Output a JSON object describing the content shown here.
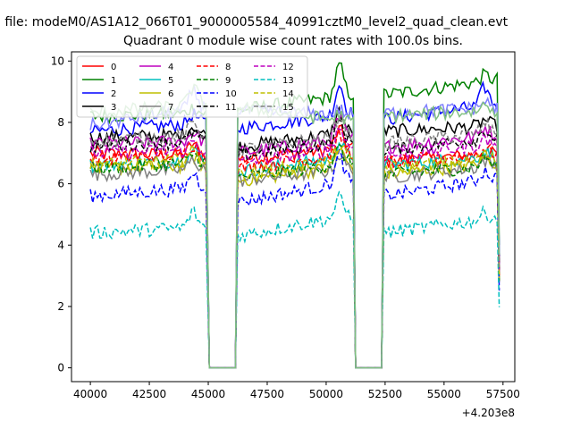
{
  "figure": {
    "suptitle": "n file: modeM0/AS1A12_066T01_9000005584_40991cztM0_level2_quad_clean.evt",
    "title": "Quadrant 0 module wise count rates with 100.0s bins.",
    "x_offset_label": "+4.203e8"
  },
  "chart_data": {
    "type": "line",
    "title": "Quadrant 0 module wise count rates with 100.0s bins.",
    "xlabel": "",
    "ylabel": "",
    "x_offset": 420300000,
    "xlim": [
      39200,
      58000
    ],
    "ylim": [
      -0.45,
      10.3
    ],
    "x_ticks": [
      40000,
      42500,
      45000,
      47500,
      50000,
      52500,
      55000,
      57500
    ],
    "x_tick_labels": [
      "40000",
      "42500",
      "45000",
      "47500",
      "50000",
      "52500",
      "55000",
      "57500"
    ],
    "y_ticks": [
      0,
      2,
      4,
      6,
      8,
      10
    ],
    "y_tick_labels": [
      "0",
      "2",
      "4",
      "6",
      "8",
      "10"
    ],
    "grid": false,
    "legend_position": "upper-left",
    "legend_columns": 4,
    "bin_seconds": 100,
    "x_start": 40000,
    "x_end": 57300,
    "gaps": [
      [
        45050,
        46150
      ],
      [
        51250,
        52350
      ]
    ],
    "series": [
      {
        "name": "0",
        "color": "#ff0000",
        "style": "solid",
        "segments": [
          {
            "from": 40000,
            "to": 44950,
            "start": 7.0,
            "end": 6.9,
            "peak": 7.4
          },
          {
            "from": 46250,
            "to": 51150,
            "start": 6.8,
            "end": 7.2,
            "peak": 7.8
          },
          {
            "from": 52450,
            "to": 57300,
            "start": 6.7,
            "end": 7.0,
            "peak": 7.0
          }
        ]
      },
      {
        "name": "1",
        "color": "#008000",
        "style": "solid",
        "segments": [
          {
            "from": 40000,
            "to": 44950,
            "start": 8.2,
            "end": 8.3,
            "peak": 8.5
          },
          {
            "from": 46250,
            "to": 51150,
            "start": 8.4,
            "end": 8.9,
            "peak": 9.9
          },
          {
            "from": 52450,
            "to": 57300,
            "start": 8.9,
            "end": 9.4,
            "peak": 9.6
          }
        ]
      },
      {
        "name": "2",
        "color": "#0000ff",
        "style": "solid",
        "segments": [
          {
            "from": 40000,
            "to": 44950,
            "start": 7.7,
            "end": 8.0,
            "peak": 8.3
          },
          {
            "from": 46250,
            "to": 51150,
            "start": 7.8,
            "end": 8.3,
            "peak": 9.3
          },
          {
            "from": 52450,
            "to": 57300,
            "start": 8.1,
            "end": 8.6,
            "peak": 9.2
          }
        ]
      },
      {
        "name": "3",
        "color": "#000000",
        "style": "solid",
        "segments": [
          {
            "from": 40000,
            "to": 44950,
            "start": 7.5,
            "end": 7.6,
            "peak": 7.9
          },
          {
            "from": 46250,
            "to": 51150,
            "start": 7.2,
            "end": 7.7,
            "peak": 8.4
          },
          {
            "from": 52450,
            "to": 57300,
            "start": 7.7,
            "end": 7.9,
            "peak": 8.1
          }
        ]
      },
      {
        "name": "4",
        "color": "#bf00bf",
        "style": "solid",
        "segments": [
          {
            "from": 40000,
            "to": 44950,
            "start": 7.3,
            "end": 7.4,
            "peak": 7.7
          },
          {
            "from": 46250,
            "to": 51150,
            "start": 7.0,
            "end": 7.5,
            "peak": 8.2
          },
          {
            "from": 52450,
            "to": 57300,
            "start": 7.2,
            "end": 7.6,
            "peak": 7.9
          }
        ]
      },
      {
        "name": "5",
        "color": "#00bfbf",
        "style": "solid",
        "segments": [
          {
            "from": 40000,
            "to": 44950,
            "start": 6.6,
            "end": 6.8,
            "peak": 7.1
          },
          {
            "from": 46250,
            "to": 51150,
            "start": 6.4,
            "end": 6.9,
            "peak": 7.4
          },
          {
            "from": 52450,
            "to": 57300,
            "start": 6.6,
            "end": 6.9,
            "peak": 7.1
          }
        ]
      },
      {
        "name": "6",
        "color": "#bfbf00",
        "style": "solid",
        "segments": [
          {
            "from": 40000,
            "to": 44950,
            "start": 6.5,
            "end": 6.6,
            "peak": 6.9
          },
          {
            "from": 46250,
            "to": 51150,
            "start": 6.1,
            "end": 6.6,
            "peak": 7.2
          },
          {
            "from": 52450,
            "to": 57300,
            "start": 6.3,
            "end": 6.7,
            "peak": 6.9
          }
        ]
      },
      {
        "name": "7",
        "color": "#808080",
        "style": "solid",
        "segments": [
          {
            "from": 40000,
            "to": 44950,
            "start": 6.3,
            "end": 6.5,
            "peak": 6.8
          },
          {
            "from": 46250,
            "to": 51150,
            "start": 6.1,
            "end": 6.5,
            "peak": 7.0
          },
          {
            "from": 52450,
            "to": 57300,
            "start": 6.2,
            "end": 6.6,
            "peak": 6.8
          }
        ]
      },
      {
        "name": "8",
        "color": "#ff0000",
        "style": "dashed",
        "segments": [
          {
            "from": 40000,
            "to": 44950,
            "start": 6.8,
            "end": 7.0,
            "peak": 7.3
          },
          {
            "from": 46250,
            "to": 51150,
            "start": 6.5,
            "end": 7.0,
            "peak": 7.6
          },
          {
            "from": 52450,
            "to": 57300,
            "start": 6.7,
            "end": 7.0,
            "peak": 7.2
          }
        ]
      },
      {
        "name": "9",
        "color": "#008000",
        "style": "dashed",
        "segments": [
          {
            "from": 40000,
            "to": 44950,
            "start": 6.5,
            "end": 6.7,
            "peak": 7.0
          },
          {
            "from": 46250,
            "to": 51150,
            "start": 6.2,
            "end": 6.7,
            "peak": 7.2
          },
          {
            "from": 52450,
            "to": 57300,
            "start": 6.3,
            "end": 6.6,
            "peak": 6.9
          }
        ]
      },
      {
        "name": "10",
        "color": "#0000ff",
        "style": "dashed",
        "segments": [
          {
            "from": 40000,
            "to": 44950,
            "start": 5.6,
            "end": 5.9,
            "peak": 6.4
          },
          {
            "from": 46250,
            "to": 51150,
            "start": 5.4,
            "end": 6.1,
            "peak": 7.0
          },
          {
            "from": 52450,
            "to": 57300,
            "start": 5.6,
            "end": 6.2,
            "peak": 6.5
          }
        ]
      },
      {
        "name": "11",
        "color": "#000000",
        "style": "dashed",
        "segments": [
          {
            "from": 40000,
            "to": 44950,
            "start": 7.2,
            "end": 7.4,
            "peak": 7.7
          },
          {
            "from": 46250,
            "to": 51150,
            "start": 6.9,
            "end": 7.4,
            "peak": 8.1
          },
          {
            "from": 52450,
            "to": 57300,
            "start": 7.1,
            "end": 7.5,
            "peak": 7.8
          }
        ]
      },
      {
        "name": "12",
        "color": "#bf00bf",
        "style": "dashed",
        "segments": [
          {
            "from": 40000,
            "to": 44950,
            "start": 7.0,
            "end": 7.1,
            "peak": 7.4
          },
          {
            "from": 46250,
            "to": 51150,
            "start": 6.7,
            "end": 7.2,
            "peak": 7.9
          },
          {
            "from": 52450,
            "to": 57300,
            "start": 6.9,
            "end": 7.3,
            "peak": 7.5
          }
        ]
      },
      {
        "name": "13",
        "color": "#00bfbf",
        "style": "dashed",
        "segments": [
          {
            "from": 40000,
            "to": 44950,
            "start": 4.4,
            "end": 4.6,
            "peak": 5.1
          },
          {
            "from": 46250,
            "to": 51150,
            "start": 4.3,
            "end": 5.0,
            "peak": 5.6
          },
          {
            "from": 52450,
            "to": 57300,
            "start": 4.4,
            "end": 4.9,
            "peak": 5.1
          }
        ]
      },
      {
        "name": "14",
        "color": "#bfbf00",
        "style": "dashed",
        "segments": [
          {
            "from": 40000,
            "to": 44950,
            "start": 6.6,
            "end": 6.8,
            "peak": 7.1
          },
          {
            "from": 46250,
            "to": 51150,
            "start": 6.3,
            "end": 6.8,
            "peak": 7.3
          },
          {
            "from": 52450,
            "to": 57300,
            "start": 6.5,
            "end": 6.8,
            "peak": 7.0
          }
        ]
      },
      {
        "name": "15",
        "color": "#808080",
        "style": "dashed",
        "segments": [
          {
            "from": 40000,
            "to": 44950,
            "start": 7.4,
            "end": 7.6,
            "peak": 8.0
          },
          {
            "from": 46250,
            "to": 51150,
            "start": 7.1,
            "end": 7.6,
            "peak": 8.3
          },
          {
            "from": 52450,
            "to": 57300,
            "start": 7.3,
            "end": 7.7,
            "peak": 8.0
          }
        ]
      },
      {
        "name": "",
        "color": "#8080ff",
        "style": "solid",
        "segments": [
          {
            "from": 40000,
            "to": 44950,
            "start": 7.9,
            "end": 8.5,
            "peak": 9.1
          },
          {
            "from": 46250,
            "to": 51150,
            "start": 8.4,
            "end": 8.2,
            "peak": 8.6
          },
          {
            "from": 52450,
            "to": 57300,
            "start": 8.3,
            "end": 8.5,
            "peak": 8.7
          }
        ]
      },
      {
        "name": "",
        "color": "#80c080",
        "style": "solid",
        "segments": [
          {
            "from": 40000,
            "to": 44950,
            "start": 8.3,
            "end": 8.6,
            "peak": 9.2
          },
          {
            "from": 46250,
            "to": 51150,
            "start": 8.5,
            "end": 8.0,
            "peak": 8.7
          },
          {
            "from": 52450,
            "to": 57300,
            "start": 8.2,
            "end": 8.4,
            "peak": 8.6
          }
        ]
      }
    ]
  }
}
